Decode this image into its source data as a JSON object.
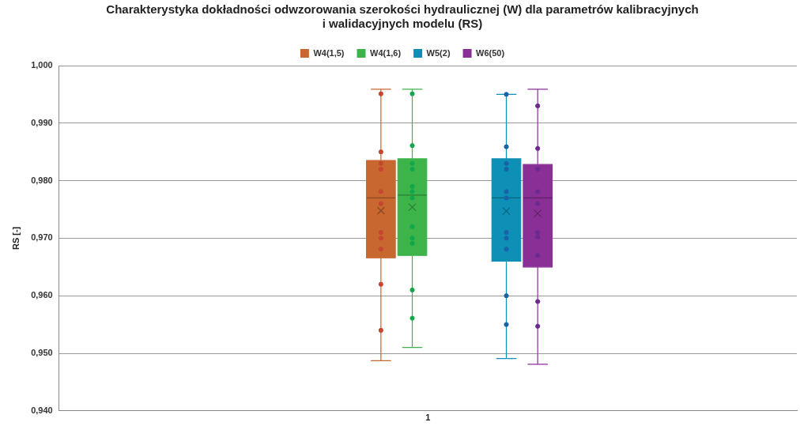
{
  "chart_data": {
    "type": "box",
    "title": "Charakterystyka dokładności odwzorowania szerokości hydraulicznej (W) dla parametrów kalibracyjnych\ni walidacyjnych modelu (RS)",
    "ylabel": "RS [-]",
    "categories": [
      "1"
    ],
    "ylim": [
      0.94,
      1.0
    ],
    "yticks": [
      {
        "value": 0.94,
        "label": "0,940"
      },
      {
        "value": 0.95,
        "label": "0,950"
      },
      {
        "value": 0.96,
        "label": "0,960"
      },
      {
        "value": 0.97,
        "label": "0,970"
      },
      {
        "value": 0.98,
        "label": "0,980"
      },
      {
        "value": 0.99,
        "label": "0,990"
      },
      {
        "value": 1.0,
        "label": "1,000"
      }
    ],
    "grid": "y",
    "legend": "top",
    "series": [
      {
        "name": "W4(1,5)",
        "type": "box",
        "color": "#c8672f",
        "boxes": [
          {
            "low": 0.9487,
            "q1": 0.9666,
            "median": 0.977,
            "q3": 0.9835,
            "high": 0.9959,
            "mean": 0.9748
          }
        ]
      },
      {
        "type": "scatter",
        "color": "#c4482f",
        "x": [
          "1",
          "1",
          "1",
          "1",
          "1",
          "1",
          "1",
          "1",
          "1",
          "1",
          "1"
        ],
        "values": [
          0.9951,
          0.985,
          0.983,
          0.982,
          0.9781,
          0.976,
          0.971,
          0.97,
          0.9681,
          0.962,
          0.954
        ]
      },
      {
        "name": "W4(1,6)",
        "type": "box",
        "color": "#3cb44a",
        "boxes": [
          {
            "low": 0.951,
            "q1": 0.967,
            "median": 0.9775,
            "q3": 0.9838,
            "high": 0.9959,
            "mean": 0.9754
          }
        ]
      },
      {
        "type": "scatter",
        "color": "#12a84a",
        "x": [
          "1",
          "1",
          "1",
          "1",
          "1",
          "1",
          "1",
          "1",
          "1",
          "1",
          "1",
          "1"
        ],
        "values": [
          0.9951,
          0.9861,
          0.983,
          0.982,
          0.979,
          0.9781,
          0.977,
          0.972,
          0.97,
          0.9691,
          0.961,
          0.9561
        ]
      },
      {
        "name": "W5(2)",
        "type": "box",
        "color": "#0e8fb5",
        "boxes": [
          {
            "low": 0.9491,
            "q1": 0.966,
            "median": 0.977,
            "q3": 0.9838,
            "high": 0.995,
            "mean": 0.9747
          }
        ]
      },
      {
        "type": "scatter",
        "color": "#1763a8",
        "x": [
          "1",
          "1",
          "1",
          "1",
          "1",
          "1",
          "1",
          "1",
          "1",
          "1",
          "1"
        ],
        "values": [
          0.995,
          0.9859,
          0.983,
          0.982,
          0.9781,
          0.977,
          0.971,
          0.97,
          0.9681,
          0.96,
          0.955
        ]
      },
      {
        "name": "W6(50)",
        "type": "box",
        "color": "#8a2f96",
        "boxes": [
          {
            "low": 0.9481,
            "q1": 0.965,
            "median": 0.977,
            "q3": 0.9828,
            "high": 0.9959,
            "mean": 0.9743
          }
        ]
      },
      {
        "type": "scatter",
        "color": "#6b2a8e",
        "x": [
          "1",
          "1",
          "1",
          "1",
          "1",
          "1",
          "1",
          "1",
          "1",
          "1"
        ],
        "values": [
          0.993,
          0.9856,
          0.982,
          0.9781,
          0.976,
          0.971,
          0.9702,
          0.967,
          0.959,
          0.9547
        ]
      }
    ]
  }
}
